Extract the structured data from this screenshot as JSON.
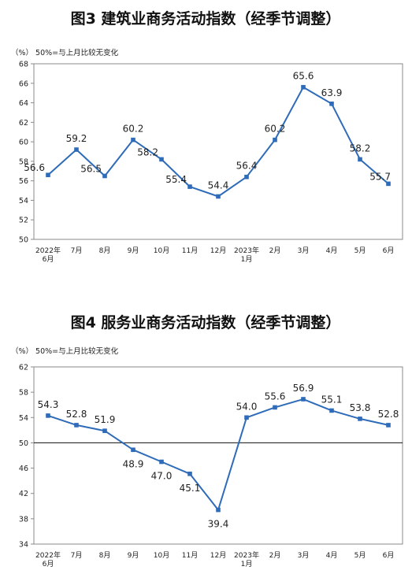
{
  "charts": [
    {
      "title": "图3  建筑业商务活动指数（经季节调整）",
      "unit_note": "（%）  50%=与上月比较无变化",
      "chart_data": {
        "type": "line",
        "title": "图3  建筑业商务活动指数（经季节调整）",
        "xlabel": "",
        "ylabel": "（%）",
        "annotation": "50%=与上月比较无变化",
        "categories": [
          [
            "2022年",
            "6月"
          ],
          [
            "7月"
          ],
          [
            "8月"
          ],
          [
            "9月"
          ],
          [
            "10月"
          ],
          [
            "11月"
          ],
          [
            "12月"
          ],
          [
            "2023年",
            "1月"
          ],
          [
            "2月"
          ],
          [
            "3月"
          ],
          [
            "4月"
          ],
          [
            "5月"
          ],
          [
            "6月"
          ]
        ],
        "values": [
          56.6,
          59.2,
          56.5,
          60.2,
          58.2,
          55.4,
          54.4,
          56.4,
          60.2,
          65.6,
          63.9,
          58.2,
          55.7
        ],
        "labels": [
          "56.6",
          "59.2",
          "56.5",
          "60.2",
          "58.2",
          "55.4",
          "54.4",
          "56.4",
          "60.2",
          "65.6",
          "63.9",
          "58.2",
          "55.7"
        ],
        "ylim": [
          50,
          68
        ],
        "yticks": [
          50,
          52,
          54,
          56,
          58,
          60,
          62,
          64,
          66,
          68
        ],
        "reference_line": 50,
        "color": "#2e6bb8",
        "grid": false,
        "legend": "none"
      }
    },
    {
      "title": "图4  服务业商务活动指数（经季节调整）",
      "unit_note": "（%）  50%=与上月比较无变化",
      "chart_data": {
        "type": "line",
        "title": "图4  服务业商务活动指数（经季节调整）",
        "xlabel": "",
        "ylabel": "（%）",
        "annotation": "50%=与上月比较无变化",
        "categories": [
          [
            "2022年",
            "6月"
          ],
          [
            "7月"
          ],
          [
            "8月"
          ],
          [
            "9月"
          ],
          [
            "10月"
          ],
          [
            "11月"
          ],
          [
            "12月"
          ],
          [
            "2023年",
            "1月"
          ],
          [
            "2月"
          ],
          [
            "3月"
          ],
          [
            "4月"
          ],
          [
            "5月"
          ],
          [
            "6月"
          ]
        ],
        "values": [
          54.3,
          52.8,
          51.9,
          48.9,
          47.0,
          45.1,
          39.4,
          54.0,
          55.6,
          56.9,
          55.1,
          53.8,
          52.8
        ],
        "labels": [
          "54.3",
          "52.8",
          "51.9",
          "48.9",
          "47.0",
          "45.1",
          "39.4",
          "54.0",
          "55.6",
          "56.9",
          "55.1",
          "53.8",
          "52.8"
        ],
        "ylim": [
          34,
          62
        ],
        "yticks": [
          34,
          38,
          42,
          46,
          50,
          54,
          58,
          62
        ],
        "reference_line": 50,
        "color": "#2e6bb8",
        "grid": false,
        "legend": "none"
      }
    }
  ]
}
